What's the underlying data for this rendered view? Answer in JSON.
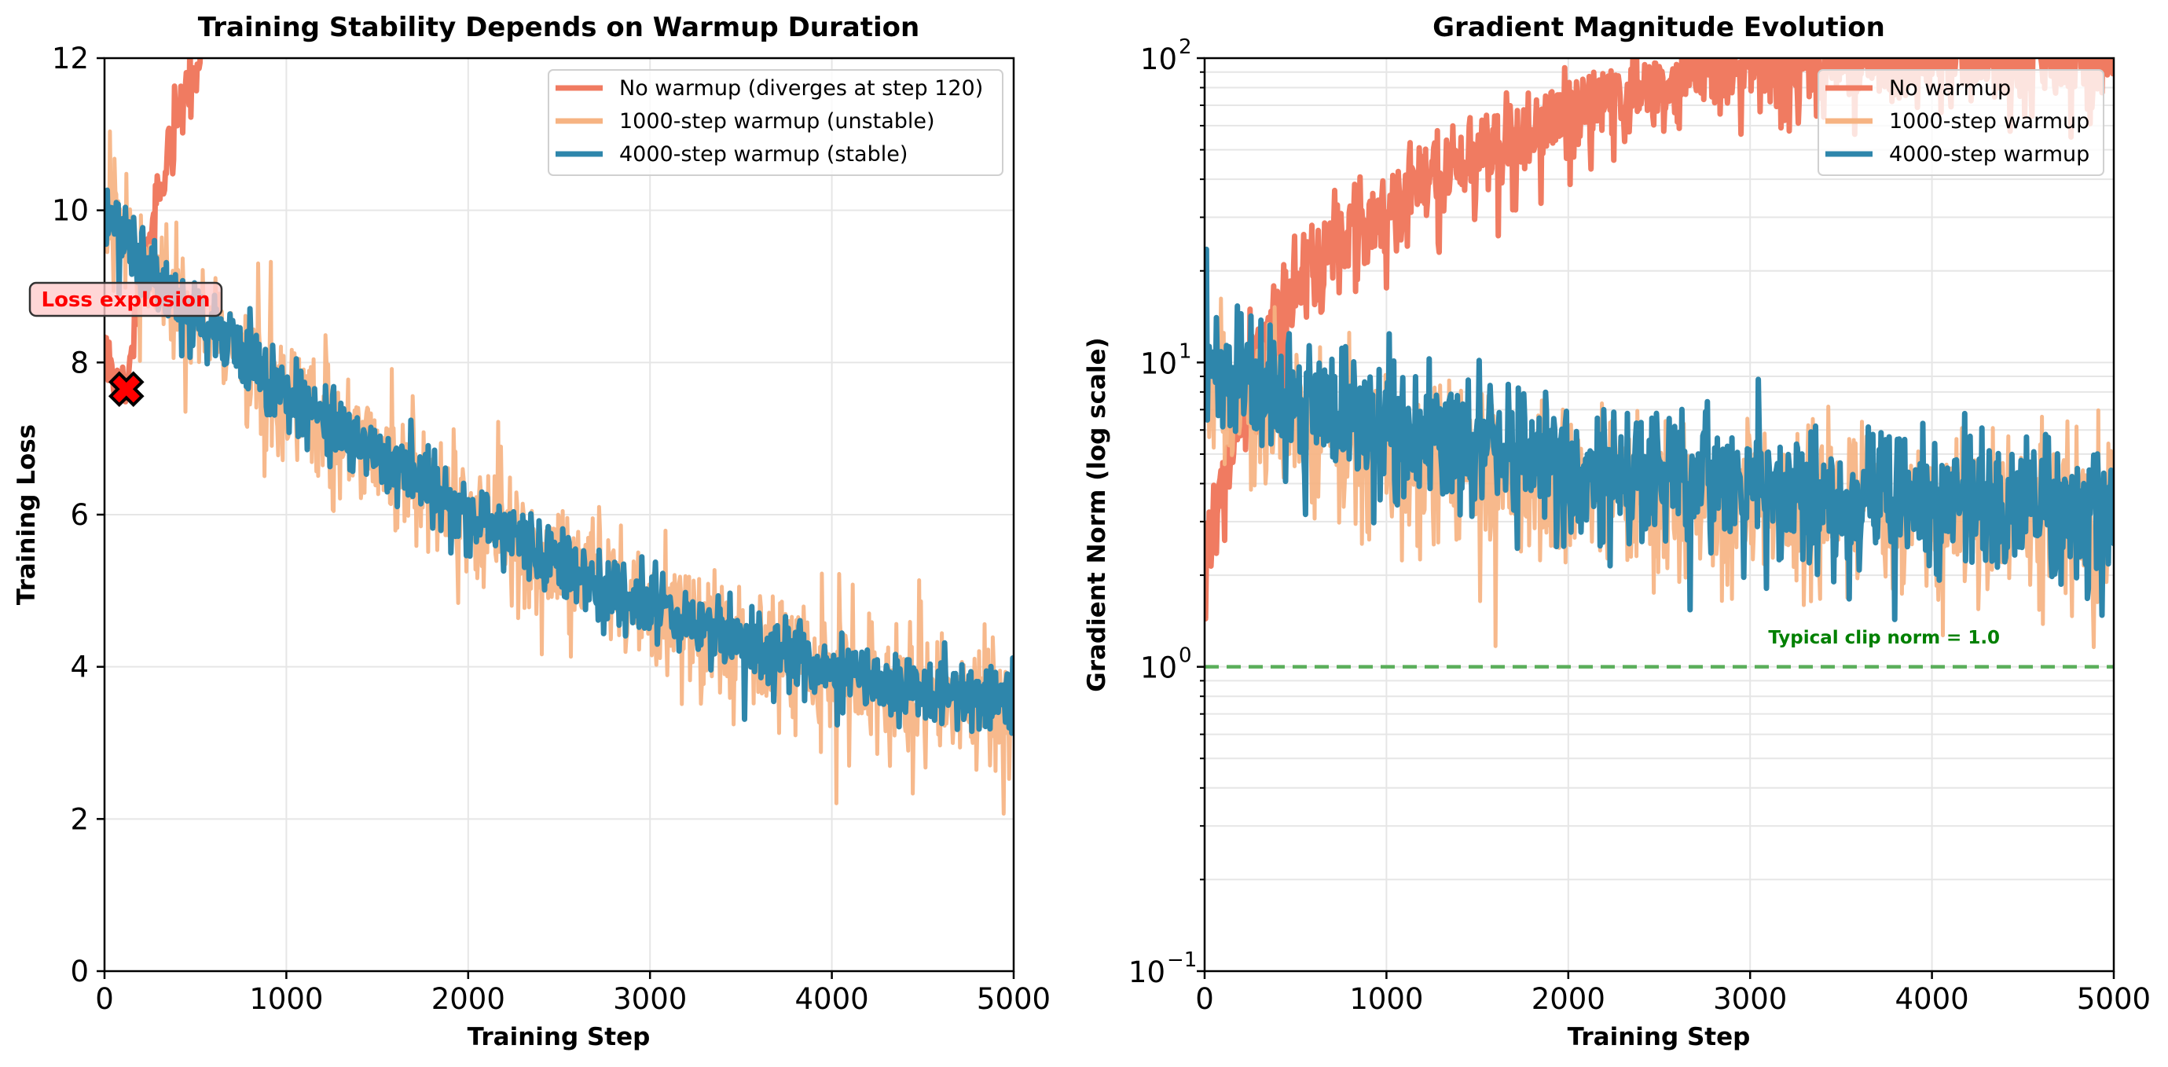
{
  "figure": {
    "colors": {
      "no_warmup": "#F07B61",
      "warmup_1000": "#F6B382",
      "warmup_4000": "#2E86AB",
      "clip_line": "#5AAE5A",
      "clip_text": "#008000",
      "annotation_text": "#FF0000",
      "annotation_fill": "#FFCCCC",
      "grid": "#E6E6E6"
    }
  },
  "chart_data": [
    {
      "type": "line",
      "title": "Training Stability Depends on Warmup Duration",
      "xlabel": "Training Step",
      "ylabel": "Training Loss",
      "xlim": [
        0,
        5000
      ],
      "ylim": [
        0,
        12
      ],
      "yscale": "linear",
      "grid": true,
      "xticks": [
        0,
        1000,
        2000,
        3000,
        4000,
        5000
      ],
      "xtick_labels": [
        "0",
        "1000",
        "2000",
        "3000",
        "4000",
        "5000"
      ],
      "yticks": [
        0,
        2,
        4,
        6,
        8,
        10,
        12
      ],
      "ytick_labels": [
        "0",
        "2",
        "4",
        "6",
        "8",
        "10",
        "12"
      ],
      "legend": {
        "placement": "top-right",
        "entries": [
          "No warmup (diverges at step 120)",
          "1000-step warmup (unstable)",
          "4000-step warmup (stable)"
        ]
      },
      "series": [
        {
          "name": "No warmup (diverges at step 120)",
          "key": "no_warmup",
          "x_end": 560,
          "points": [
            [
              0,
              8.3
            ],
            [
              60,
              7.7
            ],
            [
              120,
              7.6
            ],
            [
              160,
              8.4
            ],
            [
              220,
              9.4
            ],
            [
              280,
              10.0
            ],
            [
              340,
              10.6
            ],
            [
              400,
              11.2
            ],
            [
              460,
              11.7
            ],
            [
              520,
              12.0
            ],
            [
              560,
              12.5
            ]
          ],
          "noise": 0.35
        },
        {
          "name": "1000-step warmup (unstable)",
          "key": "warmup_1000",
          "x_end": 5000,
          "points": [
            [
              0,
              10.0
            ],
            [
              250,
              9.2
            ],
            [
              500,
              8.6
            ],
            [
              1000,
              7.6
            ],
            [
              1500,
              6.8
            ],
            [
              2000,
              6.0
            ],
            [
              2500,
              5.4
            ],
            [
              3000,
              4.8
            ],
            [
              3500,
              4.3
            ],
            [
              4000,
              3.9
            ],
            [
              4500,
              3.6
            ],
            [
              5000,
              3.4
            ]
          ],
          "noise": 0.9
        },
        {
          "name": "4000-step warmup (stable)",
          "key": "warmup_4000",
          "x_end": 5000,
          "points": [
            [
              0,
              9.9
            ],
            [
              250,
              9.2
            ],
            [
              500,
              8.6
            ],
            [
              1000,
              7.6
            ],
            [
              1500,
              6.8
            ],
            [
              2000,
              6.0
            ],
            [
              2500,
              5.4
            ],
            [
              3000,
              4.8
            ],
            [
              3500,
              4.35
            ],
            [
              4000,
              3.95
            ],
            [
              4500,
              3.65
            ],
            [
              5000,
              3.45
            ]
          ],
          "noise": 0.5
        }
      ],
      "annotations": [
        {
          "text": "Loss explosion",
          "x": 120,
          "y": 7.65,
          "marker": "X"
        }
      ]
    },
    {
      "type": "line",
      "title": "Gradient Magnitude Evolution",
      "xlabel": "Training Step",
      "ylabel": "Gradient Norm (log scale)",
      "xlim": [
        0,
        5000
      ],
      "ylim": [
        0.1,
        100
      ],
      "yscale": "log",
      "grid": true,
      "xticks": [
        0,
        1000,
        2000,
        3000,
        4000,
        5000
      ],
      "xtick_labels": [
        "0",
        "1000",
        "2000",
        "3000",
        "4000",
        "5000"
      ],
      "yticks": [
        0.1,
        1,
        10,
        100
      ],
      "ytick_labels": [
        {
          "base": "10",
          "exp": "−1"
        },
        {
          "base": "10",
          "exp": "0"
        },
        {
          "base": "10",
          "exp": "1"
        },
        {
          "base": "10",
          "exp": "2"
        }
      ],
      "legend": {
        "placement": "top-right",
        "entries": [
          "No warmup",
          "1000-step warmup",
          "4000-step warmup"
        ]
      },
      "series": [
        {
          "name": "No warmup",
          "key": "no_warmup",
          "points": [
            [
              0,
              2.0
            ],
            [
              100,
              4.0
            ],
            [
              200,
              7.0
            ],
            [
              300,
              11.0
            ],
            [
              500,
              18.0
            ],
            [
              1000,
              32.0
            ],
            [
              1500,
              48.0
            ],
            [
              2000,
              66.0
            ],
            [
              2500,
              85.0
            ],
            [
              3000,
              98.0
            ],
            [
              4000,
              100.0
            ],
            [
              5000,
              100.0
            ]
          ],
          "noise_log": 0.07
        },
        {
          "name": "1000-step warmup",
          "key": "warmup_1000",
          "points": [
            [
              0,
              8.5
            ],
            [
              500,
              6.0
            ],
            [
              1000,
              4.8
            ],
            [
              2000,
              3.9
            ],
            [
              3000,
              3.5
            ],
            [
              4000,
              3.3
            ],
            [
              5000,
              3.2
            ]
          ],
          "noise_log": 0.13
        },
        {
          "name": "4000-step warmup",
          "key": "warmup_4000",
          "points": [
            [
              0,
              10.5
            ],
            [
              500,
              7.5
            ],
            [
              1000,
              6.0
            ],
            [
              2000,
              4.6
            ],
            [
              3000,
              3.9
            ],
            [
              4000,
              3.5
            ],
            [
              5000,
              3.3
            ]
          ],
          "noise_log": 0.11
        }
      ],
      "reference_lines": [
        {
          "y": 1.0,
          "style": "dashed",
          "label": "Typical clip norm = 1.0",
          "label_x": 3100,
          "label_y": 1.25
        }
      ]
    }
  ]
}
